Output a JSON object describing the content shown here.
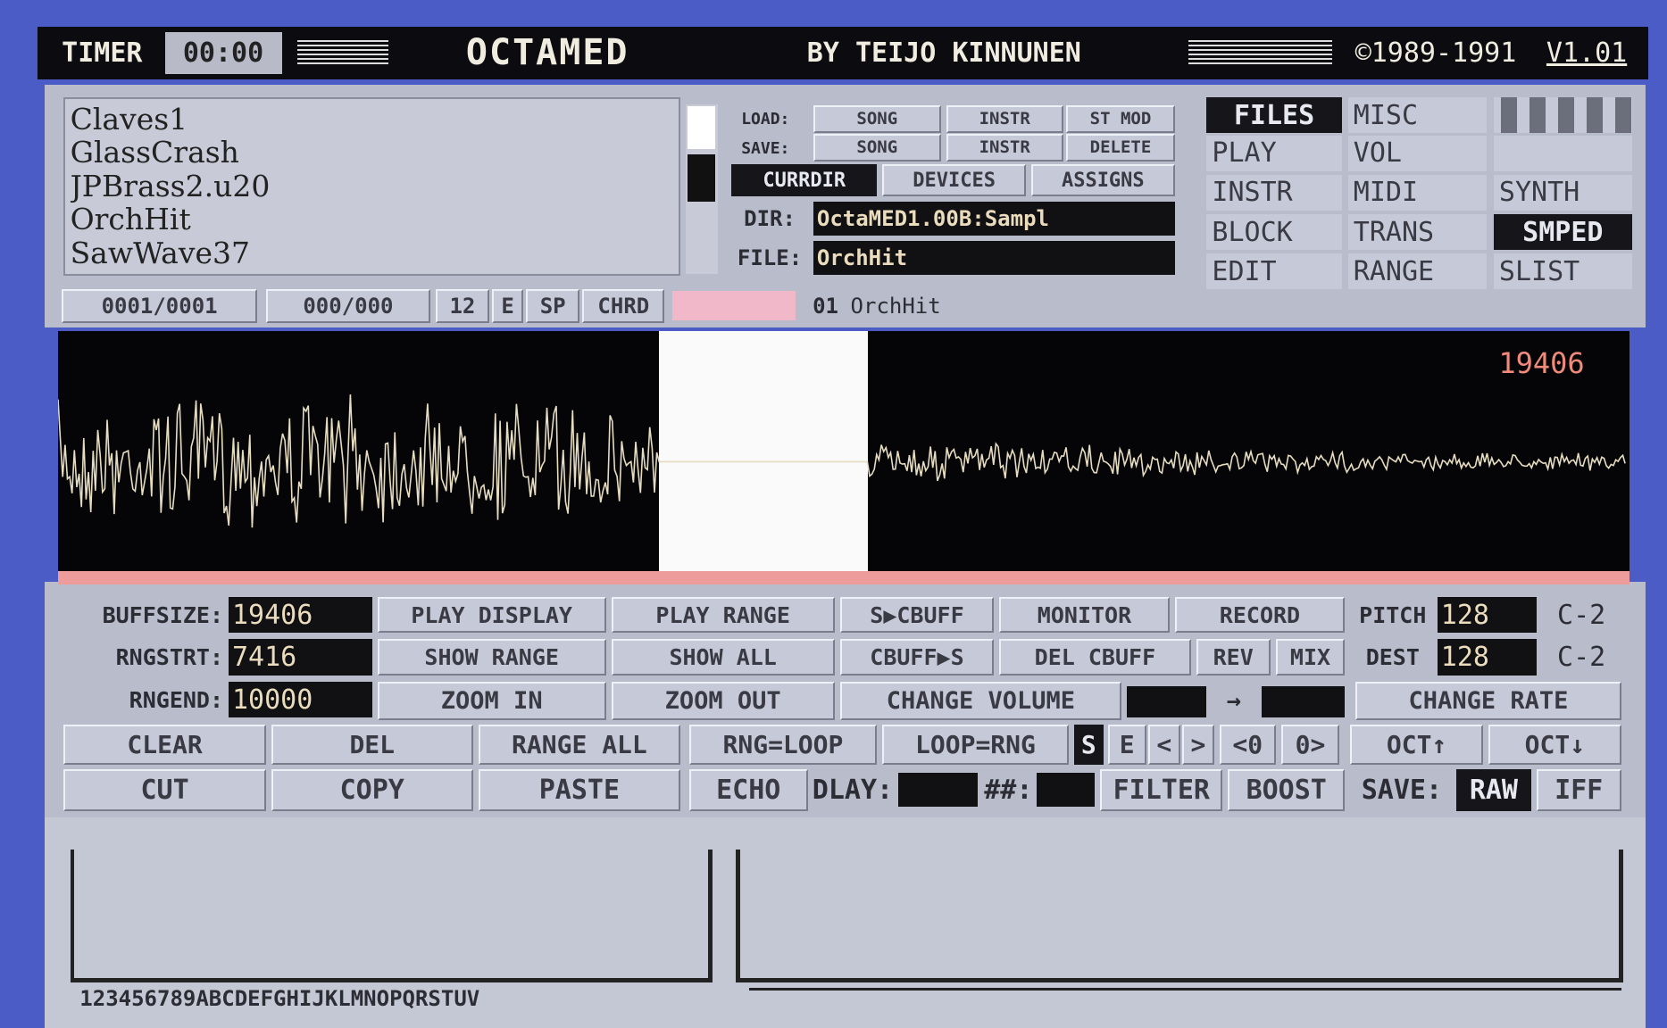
{
  "title_bar": {
    "timer_label": "TIMER",
    "timer": "00:00",
    "logo": "OCTAMED",
    "author": "BY TEIJO KINNUNEN",
    "copyright": "©1989-1991",
    "version": "V1.01"
  },
  "file_list": [
    "Claves1",
    "GlassCrash",
    "JPBrass2.u20",
    "OrchHit",
    "SawWave37"
  ],
  "disk_panel": {
    "load_label": "LOAD:",
    "save_label": "SAVE:",
    "load_buttons": [
      "SONG",
      "INSTR",
      "ST MOD"
    ],
    "save_buttons": [
      "SONG",
      "INSTR",
      "DELETE"
    ],
    "dir_buttons": [
      "CURRDIR",
      "DEVICES",
      "ASSIGNS"
    ],
    "dir_label": "DIR:",
    "dir_value": "OctaMED1.00B:Sampl",
    "file_label": "FILE:",
    "file_value": "OrchHit"
  },
  "menu": [
    [
      "FILES",
      "MISC"
    ],
    [
      "PLAY",
      "VOL"
    ],
    [
      "INSTR",
      "MIDI",
      "SYNTH"
    ],
    [
      "BLOCK",
      "TRANS",
      "SMPED"
    ],
    [
      "EDIT",
      "RANGE",
      "SLIST"
    ]
  ],
  "status_bar": [
    "0001/0001",
    "000/000",
    "12",
    "E",
    "SP",
    "CHRD",
    "01",
    "OrchHit"
  ],
  "waveform": {
    "length": "19406"
  },
  "sample_editor": {
    "fields": [
      {
        "label": "BUFFSIZE:",
        "value": "19406"
      },
      {
        "label": "RNGSTRT:",
        "value": "7416"
      },
      {
        "label": "RNGEND:",
        "value": "10000"
      }
    ],
    "row1": [
      "PLAY DISPLAY",
      "PLAY RANGE",
      "S▶CBUFF",
      "MONITOR",
      "RECORD"
    ],
    "row2": [
      "SHOW RANGE",
      "SHOW ALL",
      "CBUFF▶S",
      "DEL CBUFF",
      "REV",
      "MIX"
    ],
    "row3": [
      "ZOOM IN",
      "ZOOM OUT",
      "CHANGE VOLUME",
      "→",
      "CHANGE RATE"
    ],
    "row4": [
      "CLEAR",
      "DEL",
      "RANGE ALL",
      "RNG=LOOP",
      "LOOP=RNG",
      "S",
      "E",
      "<",
      ">",
      "<0",
      "0>",
      "OCT↑",
      "OCT↓"
    ],
    "row5": [
      "CUT",
      "COPY",
      "PASTE",
      "ECHO",
      "DLAY:",
      "##:",
      "FILTER",
      "BOOST",
      "SAVE:",
      "RAW",
      "IFF"
    ],
    "pitch": {
      "label": "PITCH",
      "value": "128",
      "note": "C-2"
    },
    "dest": {
      "label": "DEST",
      "value": "128",
      "note": "C-2"
    }
  },
  "bottom_panel": {
    "axis_label": "123456789ABCDEFGHIJKLMNOPQRSTUV"
  }
}
